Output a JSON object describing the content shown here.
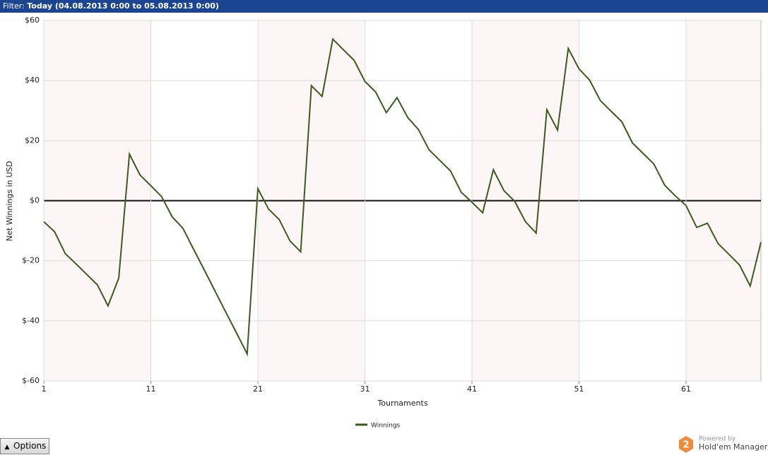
{
  "filter": {
    "label": "Filter:",
    "value": "Today (04.08.2013 0:00 to 05.08.2013 0:00)"
  },
  "chart_data": {
    "type": "line",
    "x_label": "Tournaments",
    "y_label": "Net Winnings in USD",
    "x": [
      1,
      2,
      3,
      4,
      5,
      6,
      7,
      8,
      9,
      10,
      11,
      12,
      13,
      14,
      15,
      16,
      17,
      18,
      19,
      20,
      21,
      22,
      23,
      24,
      25,
      26,
      27,
      28,
      29,
      30,
      31,
      32,
      33,
      34,
      35,
      36,
      37,
      38,
      39,
      40,
      41,
      42,
      43,
      44,
      45,
      46,
      47,
      48,
      49,
      50,
      51,
      52,
      53,
      54,
      55,
      56,
      57,
      58,
      59,
      60,
      61,
      62,
      63,
      64,
      65,
      66,
      67,
      68
    ],
    "series": [
      {
        "name": "Winnings",
        "color": "#3d5a1e",
        "values": [
          -7,
          -10.3,
          -17.6,
          -21,
          -24.5,
          -28,
          -35,
          -25.8,
          15.5,
          8.5,
          5,
          1.4,
          -5.4,
          -9.2,
          -16.2,
          -23.1,
          -30.1,
          -37.1,
          -44,
          -51,
          4,
          -2.8,
          -6.3,
          -13.4,
          -17,
          38.3,
          34.7,
          53.8,
          50.2,
          46.7,
          39.7,
          36.2,
          29.3,
          34.3,
          27.7,
          23.7,
          16.9,
          13.4,
          9.9,
          2.8,
          -0.5,
          -4,
          10.3,
          3.3,
          -0.2,
          -7,
          -10.8,
          30.3,
          23.5,
          50.7,
          43.9,
          40.1,
          33.3,
          29.8,
          26.3,
          19.2,
          15.7,
          12.2,
          5.2,
          1.6,
          -1.6,
          -8.9,
          -7.5,
          -14.3,
          -17.8,
          -21.4,
          -28.4,
          -13.8
        ]
      }
    ],
    "xlim": [
      1,
      68
    ],
    "xticks": [
      1,
      11,
      21,
      31,
      41,
      51,
      61
    ],
    "ylim": [
      -60,
      60
    ],
    "yticks": [
      {
        "value": 60,
        "label": "$60"
      },
      {
        "value": 40,
        "label": "$40"
      },
      {
        "value": 20,
        "label": "$20"
      },
      {
        "value": 0,
        "label": "$0"
      },
      {
        "value": -20,
        "label": "$-20"
      },
      {
        "value": -40,
        "label": "$-40"
      },
      {
        "value": -60,
        "label": "$-60"
      }
    ],
    "grid": true
  },
  "options": "Options",
  "powered_by": "Powered by",
  "brand": "Hold'em Manager",
  "brand_badge": "2"
}
